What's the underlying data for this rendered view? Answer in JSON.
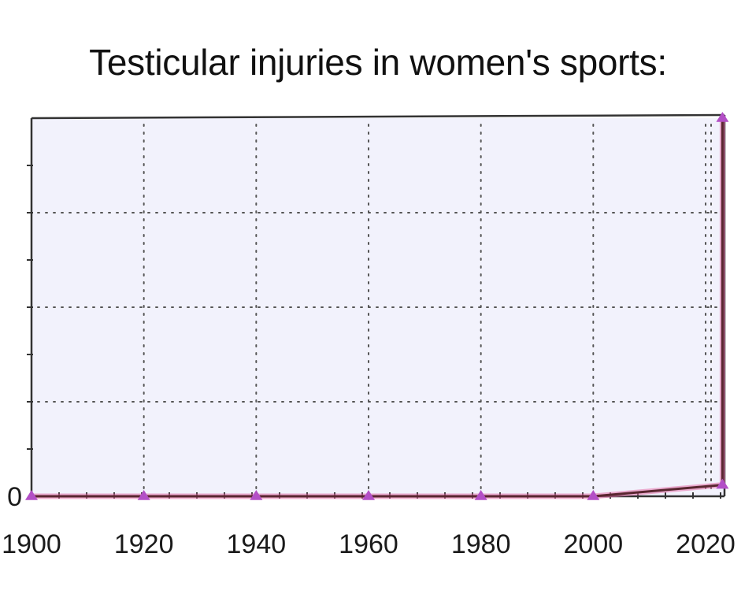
{
  "chart_data": {
    "type": "line",
    "title": "Testicular injuries in women's sports:",
    "xlabel": "",
    "ylabel": "",
    "x_ticks": [
      "1900",
      "1920",
      "1940",
      "1960",
      "1980",
      "2000",
      "2020"
    ],
    "y_tick_labels": [
      "0"
    ],
    "xlim": [
      1900,
      2020
    ],
    "ylim": [
      0,
      100
    ],
    "grid": true,
    "legend": "none",
    "series": [
      {
        "x": [
          1900,
          1920,
          1940,
          1960,
          1980,
          2000,
          2023,
          2023
        ],
        "y": [
          0,
          0,
          0,
          0,
          0,
          0,
          3,
          100
        ],
        "color": "#b34fc6",
        "line_color": "#5a2630"
      }
    ],
    "plot_background": "#f2f2fc",
    "grid_color": "#555555",
    "axis_color": "#333333"
  }
}
